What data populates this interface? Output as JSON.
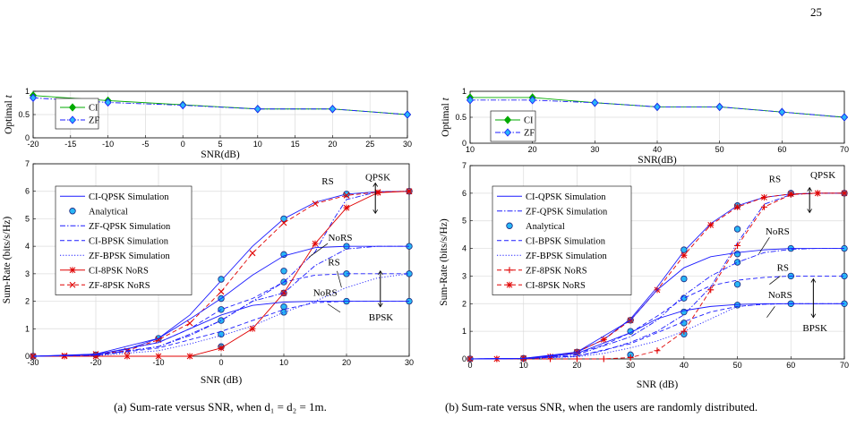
{
  "page_number": "25",
  "captions": {
    "a": "(a) Sum-rate versus SNR, when d₁ = d₂ = 1m.",
    "b": "(b) Sum-rate versus SNR, when the users are randomly distributed."
  },
  "chart_data": [
    {
      "id": "a-top",
      "type": "line",
      "xlabel": "SNR(dB)",
      "ylabel": "Optimal t",
      "xlim": [
        -20,
        30
      ],
      "ylim": [
        0,
        1
      ],
      "xticks": [
        -20,
        -15,
        -10,
        -5,
        0,
        5,
        10,
        15,
        20,
        25,
        30
      ],
      "yticks": [
        0,
        0.5,
        1
      ],
      "yticklabels": [
        "0",
        "0.5",
        "1"
      ],
      "grid": true,
      "legend_position": "upper-left",
      "series": [
        {
          "name": "CI",
          "color": "#00aa00",
          "marker": "diamond",
          "dash": "solid",
          "x": [
            -20,
            -10,
            0,
            10,
            20,
            30
          ],
          "y": [
            0.91,
            0.8,
            0.71,
            0.62,
            0.62,
            0.5
          ]
        },
        {
          "name": "ZF",
          "color": "#1c1cff",
          "marker": "diamond",
          "dash": "dashdot",
          "x": [
            -20,
            -10,
            0,
            10,
            20,
            30
          ],
          "y": [
            0.86,
            0.76,
            0.7,
            0.62,
            0.62,
            0.5
          ]
        }
      ]
    },
    {
      "id": "a-main",
      "type": "line",
      "xlabel": "SNR (dB)",
      "ylabel": "Sum-Rate (bits/s/Hz)",
      "xlim": [
        -30,
        30
      ],
      "ylim": [
        0,
        7
      ],
      "xticks": [
        -30,
        -20,
        -10,
        0,
        10,
        20,
        30
      ],
      "yticks": [
        0,
        1,
        2,
        3,
        4,
        5,
        6,
        7
      ],
      "grid": true,
      "legend_position": "upper-left",
      "series": [
        {
          "name": "CI-QPSK Simulation",
          "color": "#1c1cff",
          "marker": "none",
          "dash": "solid",
          "x": [
            -30,
            -25,
            -20,
            -15,
            -10,
            -5,
            0,
            5,
            10,
            15,
            20,
            25,
            30
          ],
          "y": [
            0.0,
            0.02,
            0.08,
            0.25,
            0.65,
            1.5,
            2.75,
            4.0,
            5.0,
            5.6,
            5.9,
            5.98,
            6.0
          ]
        },
        {
          "name": "Analytical",
          "color": "#29b6f6",
          "marker": "circle",
          "dash": "none",
          "x": [
            -30,
            -20,
            -10,
            0,
            0,
            0,
            0,
            0,
            0,
            10,
            10,
            10,
            10,
            10,
            10,
            10,
            20,
            20,
            20,
            20,
            30,
            30,
            30,
            30
          ],
          "y": [
            0.0,
            0.05,
            0.65,
            2.8,
            2.1,
            1.7,
            1.3,
            0.8,
            0.35,
            5.0,
            3.7,
            3.1,
            2.7,
            2.3,
            1.8,
            1.6,
            5.9,
            4.0,
            3.0,
            2.0,
            6.0,
            4.0,
            3.0,
            2.0
          ]
        },
        {
          "name": "ZF-QPSK Simulation",
          "color": "#1c1cff",
          "marker": "none",
          "dash": "dashdot",
          "x": [
            -30,
            -20,
            -10,
            -5,
            0,
            5,
            10,
            15,
            18,
            20,
            25,
            30
          ],
          "y": [
            0.0,
            0.03,
            0.35,
            0.8,
            1.3,
            2.0,
            2.7,
            3.8,
            5.0,
            5.7,
            5.98,
            6.0
          ]
        },
        {
          "name": "CI-BPSK Simulation",
          "color": "#1c1cff",
          "marker": "none",
          "dash": "dashed",
          "x": [
            -30,
            -20,
            -10,
            -5,
            0,
            5,
            10,
            15,
            20,
            25,
            30
          ],
          "y": [
            0.0,
            0.05,
            0.5,
            1.0,
            1.7,
            2.1,
            2.7,
            2.95,
            3.0,
            3.0,
            3.0
          ]
        },
        {
          "name": "ZF-BPSK Simulation",
          "color": "#1c1cff",
          "marker": "none",
          "dash": "dotted",
          "x": [
            -30,
            -20,
            -10,
            -5,
            0,
            5,
            10,
            15,
            20,
            25,
            30
          ],
          "y": [
            0.0,
            0.02,
            0.2,
            0.45,
            0.75,
            1.1,
            1.6,
            2.0,
            2.5,
            2.85,
            3.0
          ]
        },
        {
          "name": "CI-8PSK NoRS",
          "color": "#e00000",
          "marker": "asterisk",
          "dash": "solid",
          "x": [
            -30,
            -25,
            -20,
            -15,
            -10,
            -5,
            0,
            5,
            10,
            15,
            20,
            25,
            30
          ],
          "y": [
            0.0,
            0.0,
            0.0,
            0.0,
            0.0,
            0.0,
            0.3,
            1.0,
            2.3,
            4.1,
            5.4,
            5.95,
            6.0
          ]
        },
        {
          "name": "ZF-8PSK NoRS",
          "color": "#e00000",
          "marker": "x",
          "dash": "dashed",
          "x": [
            -30,
            -25,
            -20,
            -15,
            -10,
            -5,
            0,
            5,
            10,
            15,
            20,
            25,
            30
          ],
          "y": [
            0.0,
            0.02,
            0.08,
            0.2,
            0.6,
            1.2,
            2.35,
            3.75,
            4.85,
            5.55,
            5.85,
            5.97,
            6.0
          ]
        },
        {
          "name": "",
          "color": "#1c1cff",
          "marker": "none",
          "dash": "solid",
          "x": [
            -30,
            -20,
            -10,
            -5,
            0,
            5,
            10,
            15,
            20,
            25,
            30
          ],
          "y": [
            0.0,
            0.08,
            0.65,
            1.35,
            2.1,
            2.95,
            3.65,
            3.95,
            4.0,
            4.0,
            4.0
          ]
        },
        {
          "name": "",
          "color": "#1c1cff",
          "marker": "none",
          "dash": "dashdot",
          "x": [
            -30,
            -20,
            -10,
            -5,
            0,
            5,
            10,
            15,
            20,
            25,
            30
          ],
          "y": [
            0.0,
            0.04,
            0.35,
            0.75,
            1.3,
            2.0,
            2.3,
            3.3,
            3.9,
            4.0,
            4.0
          ]
        },
        {
          "name": "",
          "color": "#1c1cff",
          "marker": "none",
          "dash": "solid",
          "x": [
            -30,
            -20,
            -10,
            -5,
            0,
            5,
            10,
            15,
            20,
            25,
            30
          ],
          "y": [
            0.0,
            0.06,
            0.5,
            1.0,
            1.5,
            1.85,
            1.97,
            2.0,
            2.0,
            2.0,
            2.0
          ]
        },
        {
          "name": "",
          "color": "#1c1cff",
          "marker": "none",
          "dash": "dashed",
          "x": [
            -30,
            -20,
            -10,
            -5,
            0,
            5,
            10,
            15,
            20,
            25,
            30
          ],
          "y": [
            0.0,
            0.03,
            0.3,
            0.6,
            0.9,
            1.3,
            1.7,
            1.95,
            2.0,
            2.0,
            2.0
          ]
        }
      ],
      "annotations": [
        "RS",
        "QPSK",
        "NoRS",
        "RS",
        "NoRS",
        "BPSK"
      ]
    },
    {
      "id": "b-top",
      "type": "line",
      "xlabel": "SNR(dB)",
      "ylabel": "Optimal t",
      "xlim": [
        10,
        70
      ],
      "ylim": [
        0,
        1
      ],
      "xticks": [
        10,
        20,
        30,
        40,
        50,
        60,
        70
      ],
      "yticks": [
        0,
        0.5,
        1
      ],
      "yticklabels": [
        "0",
        "0.5",
        "1"
      ],
      "grid": true,
      "legend_position": "lower-left",
      "series": [
        {
          "name": "CI",
          "color": "#00aa00",
          "marker": "diamond",
          "dash": "solid",
          "x": [
            10,
            20,
            30,
            40,
            50,
            60,
            70
          ],
          "y": [
            0.88,
            0.88,
            0.78,
            0.7,
            0.7,
            0.6,
            0.5
          ]
        },
        {
          "name": "ZF",
          "color": "#1c1cff",
          "marker": "diamond",
          "dash": "dashdot",
          "x": [
            10,
            20,
            30,
            40,
            50,
            60,
            70
          ],
          "y": [
            0.83,
            0.83,
            0.78,
            0.7,
            0.7,
            0.6,
            0.5
          ]
        }
      ]
    },
    {
      "id": "b-main",
      "type": "line",
      "xlabel": "SNR (dB)",
      "ylabel": "Sum-Rate (bits/s/Hz)",
      "xlim": [
        0,
        70
      ],
      "ylim": [
        0,
        7
      ],
      "xticks": [
        0,
        10,
        20,
        30,
        40,
        50,
        60,
        70
      ],
      "yticks": [
        0,
        1,
        2,
        3,
        4,
        5,
        6,
        7
      ],
      "grid": true,
      "legend_position": "upper-left",
      "series": [
        {
          "name": "CI-QPSK Simulation",
          "color": "#1c1cff",
          "marker": "none",
          "dash": "solid",
          "x": [
            0,
            10,
            15,
            20,
            25,
            30,
            35,
            40,
            45,
            50,
            55,
            60,
            65,
            70
          ],
          "y": [
            0.0,
            0.02,
            0.08,
            0.25,
            0.7,
            1.45,
            2.6,
            3.9,
            4.9,
            5.55,
            5.85,
            5.97,
            6.0,
            6.0
          ]
        },
        {
          "name": "ZF-QPSK Simulation",
          "color": "#1c1cff",
          "marker": "none",
          "dash": "dashdot",
          "x": [
            0,
            10,
            20,
            25,
            30,
            35,
            40,
            45,
            50,
            55,
            60,
            65,
            70
          ],
          "y": [
            0.0,
            0.01,
            0.1,
            0.3,
            0.6,
            1.0,
            1.6,
            2.6,
            4.2,
            5.6,
            5.95,
            6.0,
            6.0
          ]
        },
        {
          "name": "Analytical",
          "color": "#29b6f6",
          "marker": "circle",
          "dash": "none",
          "x": [
            0,
            10,
            20,
            30,
            30,
            30,
            40,
            40,
            40,
            40,
            40,
            40,
            50,
            50,
            50,
            50,
            50,
            50,
            60,
            60,
            60,
            60,
            70,
            70,
            70,
            70
          ],
          "y": [
            0.0,
            0.02,
            0.25,
            1.4,
            1.0,
            0.15,
            3.95,
            2.9,
            2.2,
            1.7,
            1.3,
            0.9,
            5.55,
            4.7,
            3.8,
            3.5,
            2.7,
            1.95,
            6.0,
            4.0,
            3.0,
            2.0,
            6.0,
            4.0,
            3.0,
            2.0
          ]
        },
        {
          "name": "CI-BPSK Simulation",
          "color": "#1c1cff",
          "marker": "none",
          "dash": "dashed",
          "x": [
            0,
            10,
            20,
            25,
            30,
            35,
            40,
            45,
            50,
            55,
            60,
            65,
            70
          ],
          "y": [
            0.0,
            0.02,
            0.2,
            0.5,
            0.95,
            1.55,
            2.2,
            2.65,
            2.85,
            2.95,
            3.0,
            3.0,
            3.0
          ]
        },
        {
          "name": "ZF-BPSK Simulation",
          "color": "#1c1cff",
          "marker": "none",
          "dash": "dotted",
          "x": [
            0,
            10,
            20,
            25,
            30,
            35,
            40,
            45,
            50,
            55,
            60,
            65,
            70
          ],
          "y": [
            0.0,
            0.01,
            0.08,
            0.2,
            0.4,
            0.65,
            1.0,
            1.45,
            1.9,
            1.98,
            2.0,
            2.0,
            2.0
          ]
        },
        {
          "name": "ZF-8PSK NoRS",
          "color": "#e00000",
          "marker": "plus",
          "dash": "dashed",
          "x": [
            0,
            5,
            10,
            15,
            20,
            25,
            30,
            35,
            40,
            45,
            50,
            55,
            60,
            65,
            70
          ],
          "y": [
            0.0,
            0.0,
            0.0,
            0.0,
            0.0,
            0.0,
            0.05,
            0.3,
            1.0,
            2.5,
            4.1,
            5.5,
            5.95,
            6.0,
            6.0
          ]
        },
        {
          "name": "CI-8PSK NoRS",
          "color": "#e00000",
          "marker": "asterisk",
          "dash": "dashed",
          "x": [
            0,
            5,
            10,
            15,
            20,
            25,
            30,
            35,
            40,
            45,
            50,
            55,
            60,
            65,
            70
          ],
          "y": [
            0.0,
            0.0,
            0.02,
            0.08,
            0.25,
            0.7,
            1.4,
            2.5,
            3.75,
            4.85,
            5.5,
            5.85,
            5.97,
            6.0,
            6.0
          ]
        },
        {
          "name": "",
          "color": "#1c1cff",
          "marker": "none",
          "dash": "solid",
          "x": [
            0,
            10,
            20,
            30,
            35,
            40,
            45,
            50,
            55,
            60,
            65,
            70
          ],
          "y": [
            0.0,
            0.02,
            0.25,
            1.4,
            2.5,
            3.3,
            3.7,
            3.85,
            3.95,
            4.0,
            4.0,
            4.0
          ]
        },
        {
          "name": "",
          "color": "#1c1cff",
          "marker": "none",
          "dash": "dashdot",
          "x": [
            0,
            10,
            20,
            30,
            35,
            40,
            45,
            50,
            55,
            60,
            65,
            70
          ],
          "y": [
            0.0,
            0.01,
            0.15,
            0.8,
            1.4,
            2.3,
            3.0,
            3.5,
            3.85,
            3.97,
            4.0,
            4.0
          ]
        },
        {
          "name": "",
          "color": "#1c1cff",
          "marker": "none",
          "dash": "solid",
          "x": [
            0,
            10,
            20,
            30,
            35,
            40,
            45,
            50,
            55,
            60,
            65,
            70
          ],
          "y": [
            0.0,
            0.02,
            0.2,
            0.95,
            1.45,
            1.75,
            1.9,
            1.97,
            2.0,
            2.0,
            2.0,
            2.0
          ]
        },
        {
          "name": "",
          "color": "#1c1cff",
          "marker": "none",
          "dash": "dashed",
          "x": [
            0,
            10,
            20,
            30,
            35,
            40,
            45,
            50,
            55,
            60,
            65,
            70
          ],
          "y": [
            0.0,
            0.01,
            0.1,
            0.55,
            0.95,
            1.35,
            1.7,
            1.9,
            1.98,
            2.0,
            2.0,
            2.0
          ]
        }
      ],
      "annotations": [
        "RS",
        "QPSK",
        "NoRS",
        "RS",
        "NoRS",
        "BPSK"
      ]
    }
  ]
}
